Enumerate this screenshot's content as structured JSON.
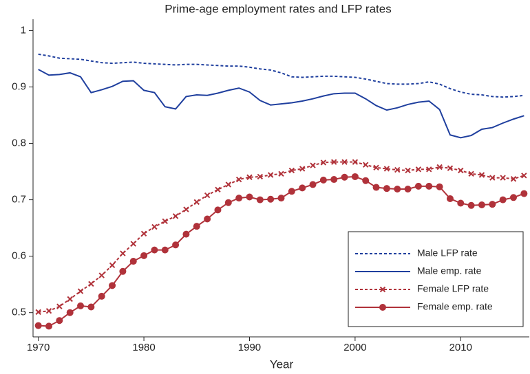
{
  "chart_data": {
    "type": "line",
    "title": "Prime-age employment rates and LFP rates",
    "x_label": "Year",
    "x": [
      1970,
      1971,
      1972,
      1973,
      1974,
      1975,
      1976,
      1977,
      1978,
      1979,
      1980,
      1981,
      1982,
      1983,
      1984,
      1985,
      1986,
      1987,
      1988,
      1989,
      1990,
      1991,
      1992,
      1993,
      1994,
      1995,
      1996,
      1997,
      1998,
      1999,
      2000,
      2001,
      2002,
      2003,
      2004,
      2005,
      2006,
      2007,
      2008,
      2009,
      2010,
      2011,
      2012,
      2013,
      2014,
      2015,
      2016
    ],
    "xlim": [
      1969.5,
      2016.5
    ],
    "xticks": [
      1970,
      1980,
      1990,
      2000,
      2010
    ],
    "ylim": [
      0.457,
      1.02
    ],
    "yticks": [
      0.5,
      0.6,
      0.7,
      0.8,
      0.9,
      1
    ],
    "legend": "lower right",
    "series": [
      {
        "name": "Male LFP rate",
        "color": "#1f3f9e",
        "dash": true,
        "marker": "none",
        "values": [
          0.958,
          0.955,
          0.951,
          0.95,
          0.949,
          0.946,
          0.943,
          0.942,
          0.943,
          0.944,
          0.942,
          0.941,
          0.94,
          0.939,
          0.94,
          0.94,
          0.939,
          0.938,
          0.937,
          0.937,
          0.935,
          0.932,
          0.93,
          0.925,
          0.918,
          0.917,
          0.918,
          0.919,
          0.919,
          0.918,
          0.917,
          0.914,
          0.91,
          0.906,
          0.905,
          0.905,
          0.906,
          0.909,
          0.905,
          0.897,
          0.891,
          0.887,
          0.886,
          0.883,
          0.882,
          0.883,
          0.885
        ]
      },
      {
        "name": "Male emp. rate",
        "color": "#1f3f9e",
        "dash": false,
        "marker": "none",
        "values": [
          0.931,
          0.921,
          0.922,
          0.925,
          0.918,
          0.89,
          0.895,
          0.901,
          0.91,
          0.911,
          0.894,
          0.89,
          0.865,
          0.861,
          0.883,
          0.886,
          0.885,
          0.889,
          0.894,
          0.898,
          0.891,
          0.876,
          0.868,
          0.87,
          0.872,
          0.875,
          0.879,
          0.884,
          0.888,
          0.889,
          0.889,
          0.879,
          0.867,
          0.859,
          0.863,
          0.869,
          0.873,
          0.875,
          0.86,
          0.815,
          0.81,
          0.814,
          0.825,
          0.828,
          0.836,
          0.843,
          0.849
        ]
      },
      {
        "name": "Female LFP rate",
        "color": "#b0323a",
        "dash": true,
        "marker": "x",
        "values": [
          0.501,
          0.503,
          0.511,
          0.524,
          0.538,
          0.551,
          0.566,
          0.584,
          0.605,
          0.622,
          0.64,
          0.652,
          0.662,
          0.671,
          0.683,
          0.696,
          0.708,
          0.718,
          0.727,
          0.736,
          0.74,
          0.741,
          0.744,
          0.746,
          0.752,
          0.755,
          0.761,
          0.766,
          0.767,
          0.767,
          0.767,
          0.762,
          0.757,
          0.755,
          0.753,
          0.752,
          0.754,
          0.754,
          0.758,
          0.756,
          0.752,
          0.746,
          0.744,
          0.739,
          0.739,
          0.737,
          0.743
        ]
      },
      {
        "name": "Female emp. rate",
        "color": "#b0323a",
        "dash": false,
        "marker": "circle",
        "values": [
          0.477,
          0.476,
          0.486,
          0.5,
          0.512,
          0.51,
          0.529,
          0.548,
          0.573,
          0.591,
          0.601,
          0.611,
          0.611,
          0.62,
          0.639,
          0.653,
          0.666,
          0.682,
          0.695,
          0.703,
          0.705,
          0.7,
          0.701,
          0.703,
          0.715,
          0.721,
          0.727,
          0.735,
          0.736,
          0.74,
          0.741,
          0.734,
          0.722,
          0.72,
          0.719,
          0.719,
          0.724,
          0.724,
          0.723,
          0.702,
          0.694,
          0.69,
          0.691,
          0.692,
          0.7,
          0.704,
          0.711
        ]
      }
    ]
  }
}
